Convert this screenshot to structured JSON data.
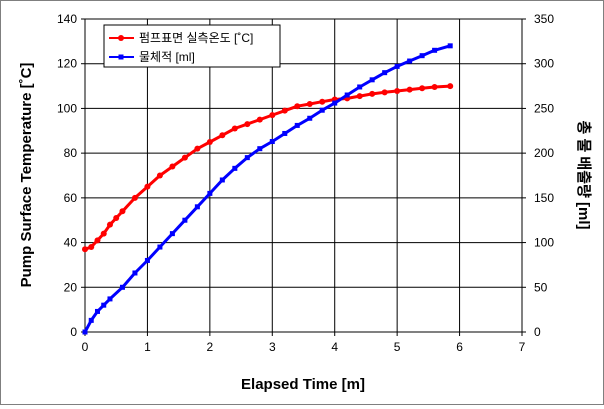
{
  "chart_data": {
    "type": "line",
    "title": "",
    "xlabel": "Elapsed Time [m]",
    "ylabel_left": "Pump Surface Temperature [˚C]",
    "ylabel_right": "총 물 배출량 [ml]",
    "xlim": [
      0,
      7
    ],
    "xticks": [
      0,
      1,
      2,
      3,
      4,
      5,
      6,
      7
    ],
    "ylim_left": [
      0,
      140
    ],
    "yticks_left": [
      0,
      20,
      40,
      60,
      80,
      100,
      120,
      140
    ],
    "ylim_right": [
      0,
      350
    ],
    "yticks_right": [
      0,
      50,
      100,
      150,
      200,
      250,
      300,
      350
    ],
    "grid": true,
    "legend_position": "top-left",
    "series": [
      {
        "name": "펌프표면 실측온도 [˚C]",
        "axis": "left",
        "color": "#ff0000",
        "marker": "circle",
        "x": [
          0,
          0.1,
          0.2,
          0.3,
          0.4,
          0.5,
          0.6,
          0.8,
          1.0,
          1.2,
          1.4,
          1.6,
          1.8,
          2.0,
          2.2,
          2.4,
          2.6,
          2.8,
          3.0,
          3.2,
          3.4,
          3.6,
          3.8,
          4.0,
          4.2,
          4.4,
          4.6,
          4.8,
          5.0,
          5.2,
          5.4,
          5.6,
          5.85
        ],
        "y": [
          37,
          38,
          41,
          44,
          48,
          51,
          54,
          60,
          65,
          70,
          74,
          78,
          82,
          85,
          88,
          91,
          93,
          95,
          97,
          99,
          101,
          102,
          103,
          104,
          104.5,
          105.5,
          106.5,
          107.2,
          107.8,
          108.4,
          109,
          109.6,
          110
        ]
      },
      {
        "name": "물체적 [ml]",
        "axis": "right",
        "color": "#0000ff",
        "marker": "square",
        "x": [
          0,
          0.1,
          0.2,
          0.3,
          0.4,
          0.6,
          0.8,
          1.0,
          1.2,
          1.4,
          1.6,
          1.8,
          2.0,
          2.2,
          2.4,
          2.6,
          2.8,
          3.0,
          3.2,
          3.4,
          3.6,
          3.8,
          4.0,
          4.2,
          4.4,
          4.6,
          4.8,
          5.0,
          5.2,
          5.4,
          5.6,
          5.85
        ],
        "y": [
          0,
          13,
          23,
          30,
          37,
          50,
          66,
          80,
          95,
          110,
          125,
          140,
          155,
          170,
          183,
          195,
          205,
          213,
          222,
          231,
          239,
          248,
          256,
          265,
          274,
          282,
          290,
          297,
          303,
          309,
          315,
          320
        ]
      }
    ]
  }
}
